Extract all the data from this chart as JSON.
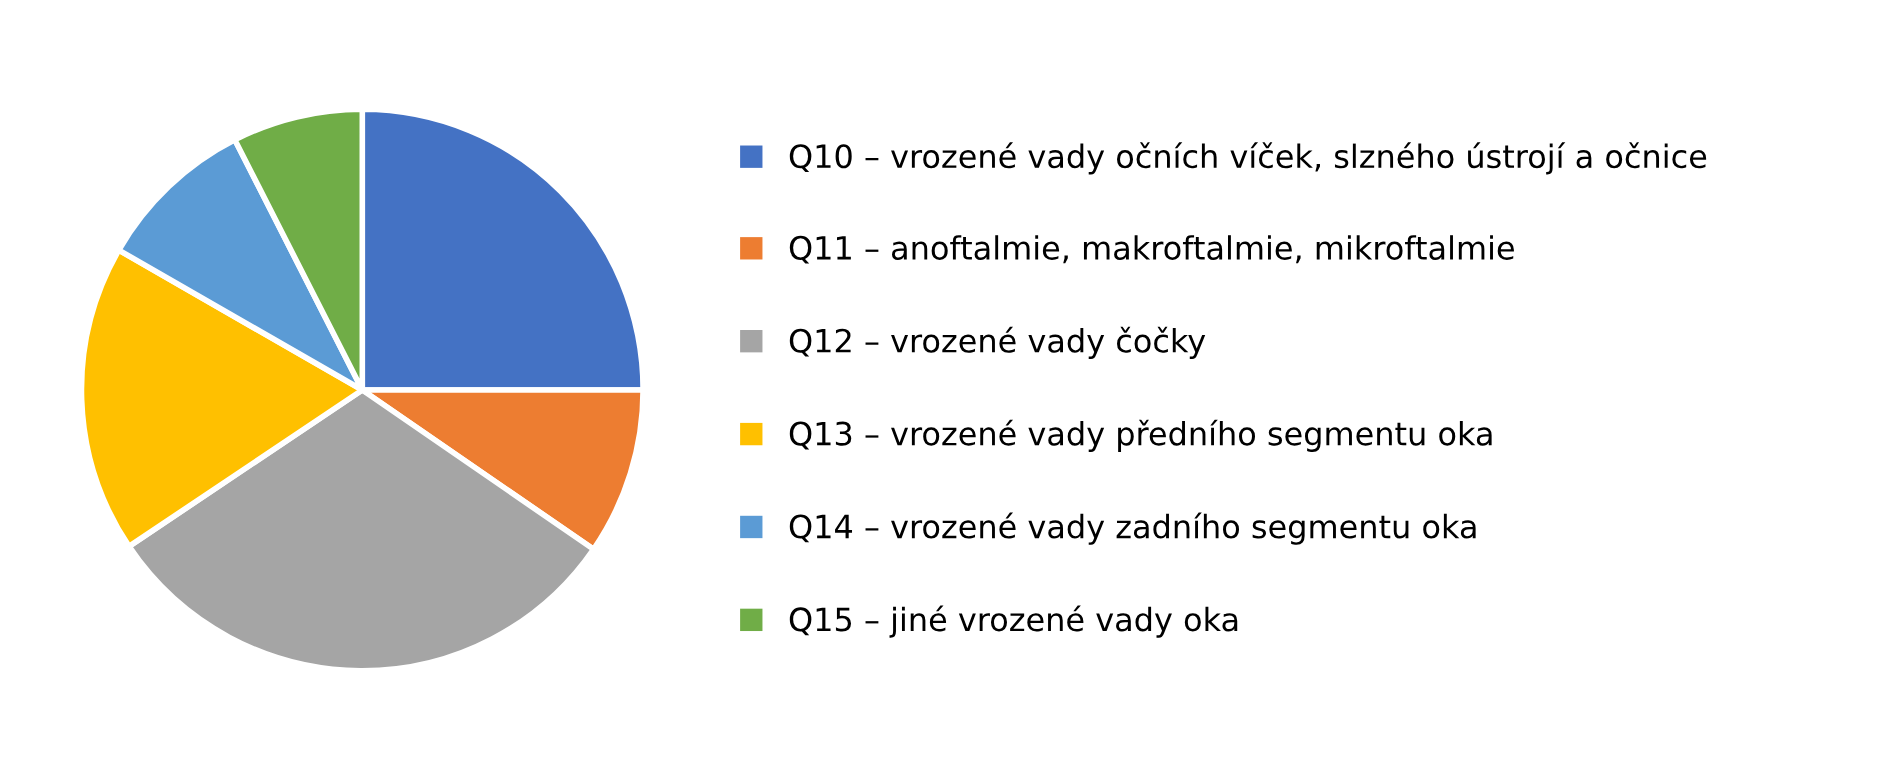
{
  "chart_data": {
    "type": "pie",
    "categories": [
      "Q10 – vrozené vady očních víček, slzného ústrojí a očnice",
      "Q11 – anoftalmie, makroftalmie, mikroftalmie",
      "Q12 – vrozené vady čočky",
      "Q13 – vrozené vady předního segmentu oka",
      "Q14 – vrozené vady zadního segmentu oka",
      "Q15 – jiné vrozené vady oka"
    ],
    "values": [
      25,
      9.6,
      31,
      17.7,
      9.2,
      7.5
    ],
    "colors": [
      "#4472c4",
      "#ed7d31",
      "#a5a5a5",
      "#ffc000",
      "#5b9bd5",
      "#70ad47"
    ],
    "legend": "right"
  }
}
